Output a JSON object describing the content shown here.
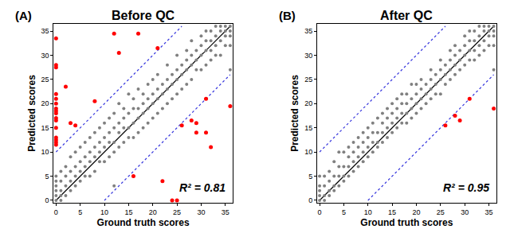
{
  "chart_data": [
    {
      "type": "scatter",
      "panel_label": "(A)",
      "title": "Before QC",
      "x_label": "Ground truth scores",
      "y_label": "Predicted scores",
      "xlim": [
        -0.5,
        36.5
      ],
      "ylim": [
        -0.5,
        36.5
      ],
      "xticks": [
        0,
        5,
        10,
        15,
        20,
        25,
        30,
        35
      ],
      "yticks": [
        0,
        5,
        10,
        15,
        20,
        25,
        30,
        35
      ],
      "grid": false,
      "annotations": [
        "R² = 0.81"
      ],
      "series": [
        {
          "type": "line",
          "color": "#000000",
          "line_style": "solid",
          "x": [
            0,
            36
          ],
          "values": [
            0,
            36
          ]
        },
        {
          "type": "line",
          "color": "#3333dd",
          "line_style": "dotted",
          "x": [
            0,
            26
          ],
          "values": [
            10,
            36
          ]
        },
        {
          "type": "line",
          "color": "#3333dd",
          "line_style": "dotted",
          "x": [
            10,
            36
          ],
          "values": [
            0,
            26
          ]
        },
        {
          "type": "scatter",
          "color": "#808080",
          "marker": "circle",
          "x": [
            0,
            0,
            0,
            0,
            0,
            0,
            1,
            1,
            1,
            1,
            1,
            2,
            2,
            2,
            2,
            3,
            3,
            3,
            3,
            4,
            4,
            4,
            4,
            5,
            5,
            5,
            5,
            6,
            6,
            6,
            6,
            7,
            7,
            7,
            7,
            8,
            8,
            8,
            8,
            9,
            9,
            9,
            9,
            10,
            10,
            10,
            10,
            11,
            11,
            11,
            11,
            12,
            12,
            12,
            12,
            12,
            13,
            13,
            13,
            13,
            14,
            14,
            14,
            14,
            15,
            15,
            15,
            15,
            16,
            16,
            16,
            16,
            17,
            17,
            17,
            17,
            18,
            18,
            18,
            18,
            19,
            19,
            19,
            19,
            20,
            20,
            20,
            20,
            21,
            21,
            21,
            21,
            22,
            22,
            22,
            23,
            23,
            23,
            23,
            24,
            24,
            24,
            25,
            25,
            25,
            25,
            26,
            26,
            26,
            27,
            27,
            27,
            27,
            28,
            28,
            28,
            28,
            29,
            29,
            29,
            30,
            30,
            30,
            30,
            31,
            31,
            31,
            31,
            32,
            32,
            32,
            32,
            33,
            33,
            33,
            33,
            34,
            34,
            34,
            34,
            35,
            35,
            35,
            35,
            36,
            36,
            36,
            36,
            36
          ],
          "values": [
            0,
            1,
            2,
            3,
            4,
            5,
            0,
            1,
            2,
            4,
            6,
            1,
            3,
            5,
            7,
            2,
            4,
            6,
            9,
            3,
            5,
            7,
            10,
            4,
            6,
            8,
            11,
            5,
            7,
            9,
            12,
            5,
            8,
            10,
            13,
            6,
            9,
            11,
            14,
            8,
            10,
            12,
            15,
            8,
            11,
            13,
            16,
            9,
            12,
            14,
            17,
            3,
            10,
            12,
            15,
            18,
            11,
            14,
            16,
            20,
            12,
            15,
            17,
            19,
            13,
            15,
            18,
            22,
            13,
            16,
            19,
            21,
            14,
            17,
            19,
            23,
            15,
            18,
            20,
            22,
            16,
            19,
            21,
            24,
            17,
            20,
            22,
            25,
            18,
            21,
            23,
            26,
            19,
            22,
            24,
            20,
            23,
            25,
            28,
            21,
            24,
            26,
            22,
            25,
            27,
            30,
            23,
            26,
            28,
            24,
            27,
            29,
            31,
            25,
            28,
            30,
            33,
            27,
            29,
            31,
            27,
            30,
            32,
            34,
            28,
            31,
            33,
            35,
            29,
            31,
            33,
            35,
            30,
            32,
            34,
            36,
            30,
            33,
            35,
            36,
            32,
            34,
            35,
            36,
            27,
            32,
            34,
            35,
            36
          ]
        },
        {
          "type": "scatter",
          "color": "#ff0000",
          "marker": "circle",
          "x": [
            0,
            0,
            0,
            0,
            0,
            0,
            0,
            0,
            0,
            0,
            0,
            0,
            0,
            0,
            0,
            0,
            2,
            3,
            4,
            8,
            12,
            13,
            16,
            17,
            21,
            22,
            24,
            25,
            26,
            28,
            29,
            29,
            31,
            31,
            32,
            36
          ],
          "values": [
            33.5,
            28,
            27.5,
            22,
            21,
            20,
            19,
            18.5,
            18,
            17,
            16.5,
            15,
            13,
            12.5,
            12,
            11.5,
            23.5,
            16,
            15.5,
            20.5,
            34.5,
            30.5,
            5,
            34.5,
            31.5,
            4,
            0,
            0,
            15.5,
            16.5,
            16,
            14,
            21,
            14,
            11,
            19.5
          ]
        }
      ]
    },
    {
      "type": "scatter",
      "panel_label": "(B)",
      "title": "After QC",
      "x_label": "Ground truth scores",
      "y_label": "Predicted scores",
      "xlim": [
        -0.5,
        36.5
      ],
      "ylim": [
        -0.5,
        36.5
      ],
      "xticks": [
        0,
        5,
        10,
        15,
        20,
        25,
        30,
        35
      ],
      "yticks": [
        0,
        5,
        10,
        15,
        20,
        25,
        30,
        35
      ],
      "grid": false,
      "annotations": [
        "R² = 0.95"
      ],
      "series": [
        {
          "type": "line",
          "color": "#000000",
          "line_style": "solid",
          "x": [
            0,
            36
          ],
          "values": [
            0,
            36
          ]
        },
        {
          "type": "line",
          "color": "#3333dd",
          "line_style": "dotted",
          "x": [
            0,
            26
          ],
          "values": [
            10,
            36
          ]
        },
        {
          "type": "line",
          "color": "#3333dd",
          "line_style": "dotted",
          "x": [
            10,
            36
          ],
          "values": [
            0,
            26
          ]
        },
        {
          "type": "scatter",
          "color": "#808080",
          "marker": "circle",
          "x": [
            0,
            0,
            0,
            0,
            0,
            1,
            1,
            1,
            1,
            2,
            2,
            2,
            2,
            3,
            3,
            3,
            3,
            4,
            4,
            4,
            4,
            5,
            5,
            5,
            5,
            6,
            6,
            6,
            6,
            7,
            7,
            7,
            7,
            8,
            8,
            8,
            8,
            9,
            9,
            9,
            9,
            10,
            10,
            10,
            10,
            11,
            11,
            11,
            11,
            12,
            12,
            12,
            12,
            13,
            13,
            13,
            13,
            14,
            14,
            14,
            14,
            15,
            15,
            15,
            15,
            16,
            16,
            16,
            16,
            17,
            17,
            17,
            17,
            18,
            18,
            18,
            18,
            19,
            19,
            19,
            19,
            20,
            20,
            20,
            20,
            21,
            21,
            21,
            21,
            22,
            22,
            22,
            23,
            23,
            23,
            23,
            24,
            24,
            24,
            25,
            25,
            25,
            25,
            26,
            26,
            26,
            27,
            27,
            27,
            27,
            28,
            28,
            28,
            28,
            29,
            29,
            29,
            30,
            30,
            30,
            30,
            31,
            31,
            31,
            31,
            32,
            32,
            32,
            32,
            33,
            33,
            33,
            33,
            34,
            34,
            34,
            34,
            35,
            35,
            35,
            35,
            36,
            36,
            36,
            36,
            36
          ],
          "values": [
            0,
            1,
            2,
            3,
            5,
            0,
            1,
            3,
            5,
            1,
            2,
            4,
            6,
            2,
            3,
            5,
            8,
            3,
            5,
            7,
            10,
            4,
            5,
            7,
            10,
            5,
            7,
            9,
            11,
            6,
            8,
            10,
            12,
            7,
            9,
            11,
            13,
            8,
            10,
            12,
            14,
            9,
            11,
            13,
            15,
            10,
            12,
            14,
            16,
            11,
            12,
            14,
            17,
            12,
            14,
            16,
            18,
            13,
            15,
            17,
            19,
            14,
            16,
            18,
            20,
            15,
            17,
            19,
            21,
            16,
            18,
            20,
            22,
            16,
            18,
            20,
            22,
            17,
            19,
            21,
            24,
            18,
            20,
            22,
            24,
            19,
            21,
            23,
            25,
            20,
            22,
            24,
            21,
            23,
            25,
            27,
            22,
            24,
            26,
            22,
            25,
            27,
            29,
            24,
            26,
            28,
            25,
            27,
            29,
            31,
            26,
            28,
            30,
            32,
            27,
            29,
            31,
            28,
            30,
            32,
            34,
            29,
            31,
            33,
            35,
            29,
            31,
            33,
            35,
            30,
            32,
            34,
            36,
            31,
            33,
            35,
            36,
            32,
            34,
            35,
            36,
            27,
            32,
            34,
            35,
            36
          ]
        },
        {
          "type": "scatter",
          "color": "#ff0000",
          "marker": "circle",
          "x": [
            26,
            28,
            29,
            31,
            36
          ],
          "values": [
            15.5,
            17.5,
            16.5,
            21,
            19
          ]
        }
      ]
    }
  ]
}
